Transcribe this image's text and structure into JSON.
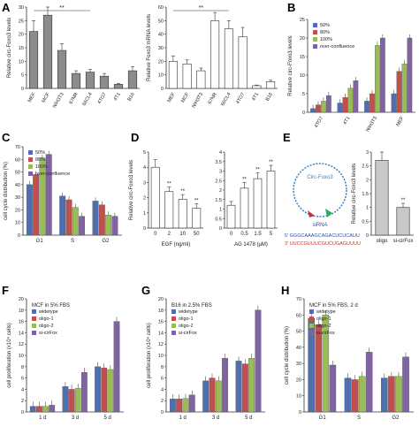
{
  "panels": {
    "A": "A",
    "B": "B",
    "C": "C",
    "D": "D",
    "E": "E",
    "F": "F",
    "G": "G",
    "H": "H"
  },
  "chart_data": [
    {
      "id": "A1",
      "type": "bar",
      "panel": "A",
      "ylabel": "Relative circ-Foxo3 levels",
      "categories": [
        "MEF",
        "MCF",
        "NIH3T3",
        "67NR",
        "66CL4",
        "4TO7",
        "4T1",
        "B16"
      ],
      "values": [
        21,
        27,
        14,
        5.5,
        6,
        4.5,
        1.5,
        6.5
      ],
      "errors": [
        4,
        3,
        2.5,
        1,
        1,
        1,
        0.3,
        1.5
      ],
      "ylim": [
        0,
        30
      ],
      "yticks": [
        0,
        5,
        10,
        15,
        20,
        25,
        30
      ],
      "color": "#8c8c8c",
      "sig": "**"
    },
    {
      "id": "A2",
      "type": "bar",
      "panel": "A",
      "ylabel": "Relative Foxo3 mRNA levels",
      "categories": [
        "MEF",
        "MCF",
        "NIH3T3",
        "67NR",
        "66CL4",
        "4TO7",
        "4T1",
        "B16"
      ],
      "values": [
        20,
        18,
        13,
        50,
        44,
        38,
        2,
        5
      ],
      "errors": [
        4,
        3,
        2,
        6,
        6,
        7,
        0.5,
        1
      ],
      "ylim": [
        0,
        60
      ],
      "yticks": [
        0,
        10,
        20,
        30,
        40,
        50,
        60
      ],
      "color": "#ffffff",
      "sig": "**"
    },
    {
      "id": "B",
      "type": "bar",
      "panel": "B",
      "ylabel": "Relative circ-Foxo3 levels",
      "categories": [
        "4TO7",
        "4T1",
        "NIH3T3",
        "MEF"
      ],
      "series": [
        {
          "name": "50%",
          "values": [
            1,
            2.5,
            3,
            5
          ],
          "color": "#4f6fb0"
        },
        {
          "name": "80%",
          "values": [
            2,
            4,
            5,
            11
          ],
          "color": "#c0504d"
        },
        {
          "name": "100%",
          "values": [
            3,
            6.5,
            18,
            13
          ],
          "color": "#9bbb59"
        },
        {
          "name": "over-confluence",
          "values": [
            4.5,
            8.5,
            20,
            20
          ],
          "color": "#8064a2"
        }
      ],
      "ylim": [
        0,
        25
      ],
      "yticks": [
        0,
        5,
        10,
        15,
        20,
        25
      ]
    },
    {
      "id": "C",
      "type": "bar",
      "panel": "C",
      "ylabel": "cell cycle distribution (%)",
      "categories": [
        "G1",
        "S",
        "G2"
      ],
      "series": [
        {
          "name": "50%",
          "values": [
            40,
            31,
            27
          ],
          "color": "#4f6fb0"
        },
        {
          "name": "80%",
          "values": [
            48,
            28,
            24
          ],
          "color": "#c0504d"
        },
        {
          "name": "100%",
          "values": [
            61,
            22,
            16
          ],
          "color": "#9bbb59"
        },
        {
          "name": "over-confluence",
          "values": [
            64,
            15,
            15
          ],
          "color": "#8064a2"
        }
      ],
      "ylim": [
        0,
        70
      ],
      "yticks": [
        0,
        10,
        20,
        30,
        40,
        50,
        60,
        70
      ]
    },
    {
      "id": "D1",
      "type": "bar",
      "panel": "D",
      "ylabel": "Relative circ-Foxo3 levels",
      "xlabel": "EGF (ng/ml)",
      "categories": [
        "0",
        "2",
        "10",
        "50"
      ],
      "values": [
        4,
        2.4,
        1.9,
        1.3
      ],
      "errors": [
        0.5,
        0.3,
        0.3,
        0.3
      ],
      "ylim": [
        0,
        5
      ],
      "yticks": [
        0,
        1,
        2,
        3,
        4,
        5
      ],
      "color": "#ffffff",
      "sig": [
        "",
        "**",
        "**",
        "**"
      ]
    },
    {
      "id": "D2",
      "type": "bar",
      "panel": "D",
      "xlabel": "AG 1478 (μM)",
      "categories": [
        "0",
        "0.5",
        "1.5",
        "5"
      ],
      "values": [
        1.2,
        2.1,
        2.6,
        3
      ],
      "errors": [
        0.2,
        0.3,
        0.3,
        0.3
      ],
      "ylim": [
        0,
        4
      ],
      "yticks": [
        0,
        0.5,
        1,
        1.5,
        2,
        2.5,
        3,
        3.5,
        4
      ],
      "color": "#ffffff",
      "sig": [
        "",
        "**",
        "**",
        "**"
      ]
    },
    {
      "id": "E",
      "type": "bar",
      "panel": "E",
      "ylabel": "Relative circ-Foxo3 levels",
      "categories": [
        "oligo",
        "si-cirFox"
      ],
      "values": [
        2.7,
        1
      ],
      "errors": [
        0.3,
        0.15
      ],
      "ylim": [
        0,
        3
      ],
      "yticks": [
        0,
        0.5,
        1,
        1.5,
        2,
        2.5,
        3
      ],
      "color": "#c8c8c8",
      "sig": [
        "",
        "**"
      ]
    },
    {
      "id": "F",
      "type": "bar",
      "panel": "F",
      "title": "MCF in 5% FBS",
      "ylabel": "cell proliferation (x10⁴ cells)",
      "categories": [
        "1 d",
        "3 d",
        "5 d"
      ],
      "series": [
        {
          "name": "widetype",
          "values": [
            1,
            4.5,
            8
          ],
          "color": "#4f6fb0"
        },
        {
          "name": "oligo-1",
          "values": [
            1,
            4,
            7.8
          ],
          "color": "#c0504d"
        },
        {
          "name": "oligo-2",
          "values": [
            1,
            4.2,
            7.5
          ],
          "color": "#9bbb59"
        },
        {
          "name": "si-cirFox",
          "values": [
            1.2,
            7,
            16
          ],
          "color": "#8064a2"
        }
      ],
      "ylim": [
        0,
        20
      ],
      "yticks": [
        0,
        2,
        4,
        6,
        8,
        10,
        12,
        14,
        16,
        18,
        20
      ]
    },
    {
      "id": "G",
      "type": "bar",
      "panel": "G",
      "title": "B16 in 2.5% FBS",
      "ylabel": "cell proliferation (x10⁴ cells)",
      "categories": [
        "1 d",
        "3 d",
        "5 d"
      ],
      "series": [
        {
          "name": "widetype",
          "values": [
            2.3,
            5.5,
            9
          ],
          "color": "#4f6fb0"
        },
        {
          "name": "oligo-1",
          "values": [
            2.3,
            6,
            8.5
          ],
          "color": "#c0504d"
        },
        {
          "name": "oligo-2",
          "values": [
            2.4,
            5.5,
            9.5
          ],
          "color": "#9bbb59"
        },
        {
          "name": "si-cirFox",
          "values": [
            3,
            9.5,
            18
          ],
          "color": "#8064a2"
        }
      ],
      "ylim": [
        0,
        20
      ],
      "yticks": [
        0,
        2,
        4,
        6,
        8,
        10,
        12,
        14,
        16,
        18,
        20
      ]
    },
    {
      "id": "H",
      "type": "bar",
      "panel": "H",
      "title": "MCF in 5% FBS, 2 d",
      "ylabel": "cell cycle distribution (%)",
      "categories": [
        "G1",
        "S",
        "G2"
      ],
      "series": [
        {
          "name": "widetype",
          "values": [
            58,
            21,
            21
          ],
          "color": "#4f6fb0"
        },
        {
          "name": "oligo-1",
          "values": [
            54,
            20,
            22
          ],
          "color": "#c0504d"
        },
        {
          "name": "oligo-2",
          "values": [
            60,
            22,
            22
          ],
          "color": "#9bbb59"
        },
        {
          "name": "si-cirFox",
          "values": [
            29,
            37,
            34
          ],
          "color": "#8064a2"
        }
      ],
      "ylim": [
        0,
        70
      ],
      "yticks": [
        0,
        10,
        20,
        30,
        40,
        50,
        60,
        70
      ]
    }
  ],
  "diagram_E": {
    "circle_label": "Circ-Foxo3",
    "sirna_label": "siRNA",
    "seq1": "5' GGGCAAAGCAGACUCUCAUU",
    "seq2": "3' UUCCGUUUCGUCUGAGUUUU"
  }
}
